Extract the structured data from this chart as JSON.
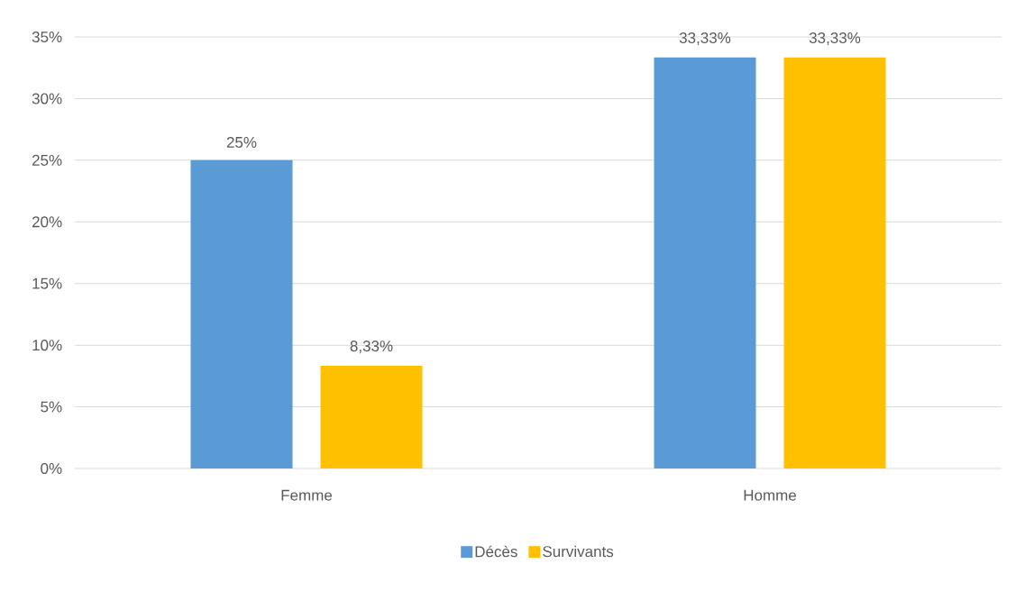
{
  "chart_data": {
    "type": "bar",
    "categories": [
      "Femme",
      "Homme"
    ],
    "series": [
      {
        "name": "Décès",
        "color": "#5b9bd5",
        "values": [
          25,
          33.33
        ],
        "value_labels": [
          "25%",
          "33,33%"
        ]
      },
      {
        "name": "Survivants",
        "color": "#ffc000",
        "values": [
          8.33,
          33.33
        ],
        "value_labels": [
          "8,33%",
          "33,33%"
        ]
      }
    ],
    "ylim": [
      0,
      35
    ],
    "yticks": [
      {
        "value": 0,
        "label": "0%"
      },
      {
        "value": 5,
        "label": "5%"
      },
      {
        "value": 10,
        "label": "10%"
      },
      {
        "value": 15,
        "label": "15%"
      },
      {
        "value": 20,
        "label": "20%"
      },
      {
        "value": 25,
        "label": "25%"
      },
      {
        "value": 30,
        "label": "30%"
      },
      {
        "value": 35,
        "label": "35%"
      }
    ],
    "grid": "y",
    "legend": "bottom"
  }
}
